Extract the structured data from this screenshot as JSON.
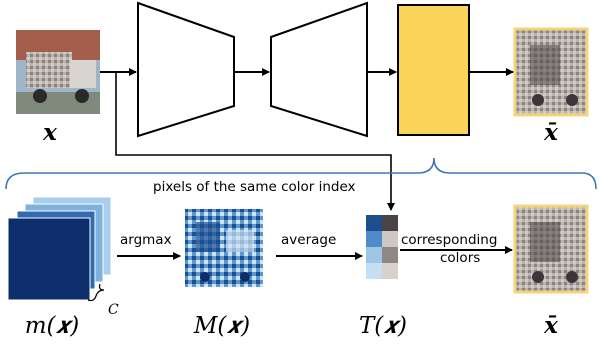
{
  "labels": {
    "x_input": "𝒙",
    "x_output": "x̄",
    "x_bottom": "x̄",
    "m_x": "m(𝒙)",
    "M_x": "M(𝒙)",
    "T_x": "T(𝒙)",
    "C": "C"
  },
  "edges": {
    "argmax": "argmax",
    "average": "average",
    "corresponding_colors_1": "corresponding",
    "corresponding_colors_2": "colors",
    "pixels_same_index": "pixels of the same color index"
  },
  "colors": {
    "encoder_fill": "#ffffff",
    "palette_block": "#fbd55a",
    "brace": "#3b78b5",
    "stack_dark": "#0d2d6b",
    "stack_mid": "#2f6bb0",
    "stack_light": "#7fb0de",
    "stack_lightest": "#a9cdee",
    "output_border": "#f4d47a",
    "palette_tiles": [
      "#1d4f8f",
      "#4a4346",
      "#4f8bc8",
      "#cfc7c2",
      "#9fc5e6",
      "#8f8783"
    ]
  }
}
